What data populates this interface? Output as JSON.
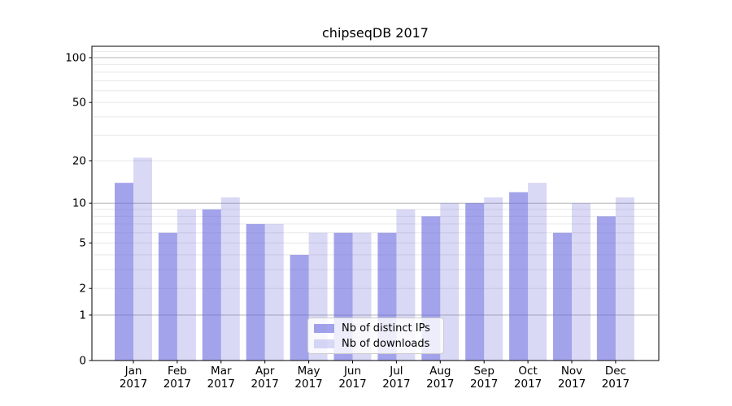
{
  "chart_data": {
    "type": "bar",
    "title": "chipseqDB 2017",
    "categories": [
      "Jan 2017",
      "Feb 2017",
      "Mar 2017",
      "Apr 2017",
      "May 2017",
      "Jun 2017",
      "Jul 2017",
      "Aug 2017",
      "Sep 2017",
      "Oct 2017",
      "Nov 2017",
      "Dec 2017"
    ],
    "series": [
      {
        "name": "Nb of distinct IPs",
        "color": "rgba(102,102,221,0.6)",
        "values": [
          14,
          6,
          9,
          7,
          4,
          6,
          6,
          8,
          10,
          12,
          6,
          8
        ]
      },
      {
        "name": "Nb of downloads",
        "color": "rgba(102,102,221,0.25)",
        "values": [
          21,
          9,
          11,
          7,
          6,
          6,
          9,
          10,
          11,
          14,
          10,
          11
        ]
      }
    ],
    "y_axis": {
      "scale": "log1p",
      "tick_values": [
        0,
        1,
        2,
        5,
        10,
        20,
        50,
        100
      ],
      "tick_labels": [
        "0",
        "1",
        "2",
        "5",
        "10",
        "20",
        "50",
        "100"
      ],
      "major_gridlines": [
        1,
        10,
        100
      ],
      "minor_gridlines": [
        2,
        3,
        4,
        5,
        6,
        7,
        8,
        9,
        20,
        30,
        40,
        50,
        60,
        70,
        80,
        90,
        110
      ],
      "range": [
        0,
        121
      ]
    },
    "xlabel": "",
    "ylabel": "",
    "grid": true,
    "legend_position": "lower center",
    "colors": {
      "major_grid": "#b4b4b4",
      "minor_grid": "#e8e8e8",
      "axis": "#000000",
      "tick_text": "#000000",
      "background": "#ffffff"
    }
  }
}
